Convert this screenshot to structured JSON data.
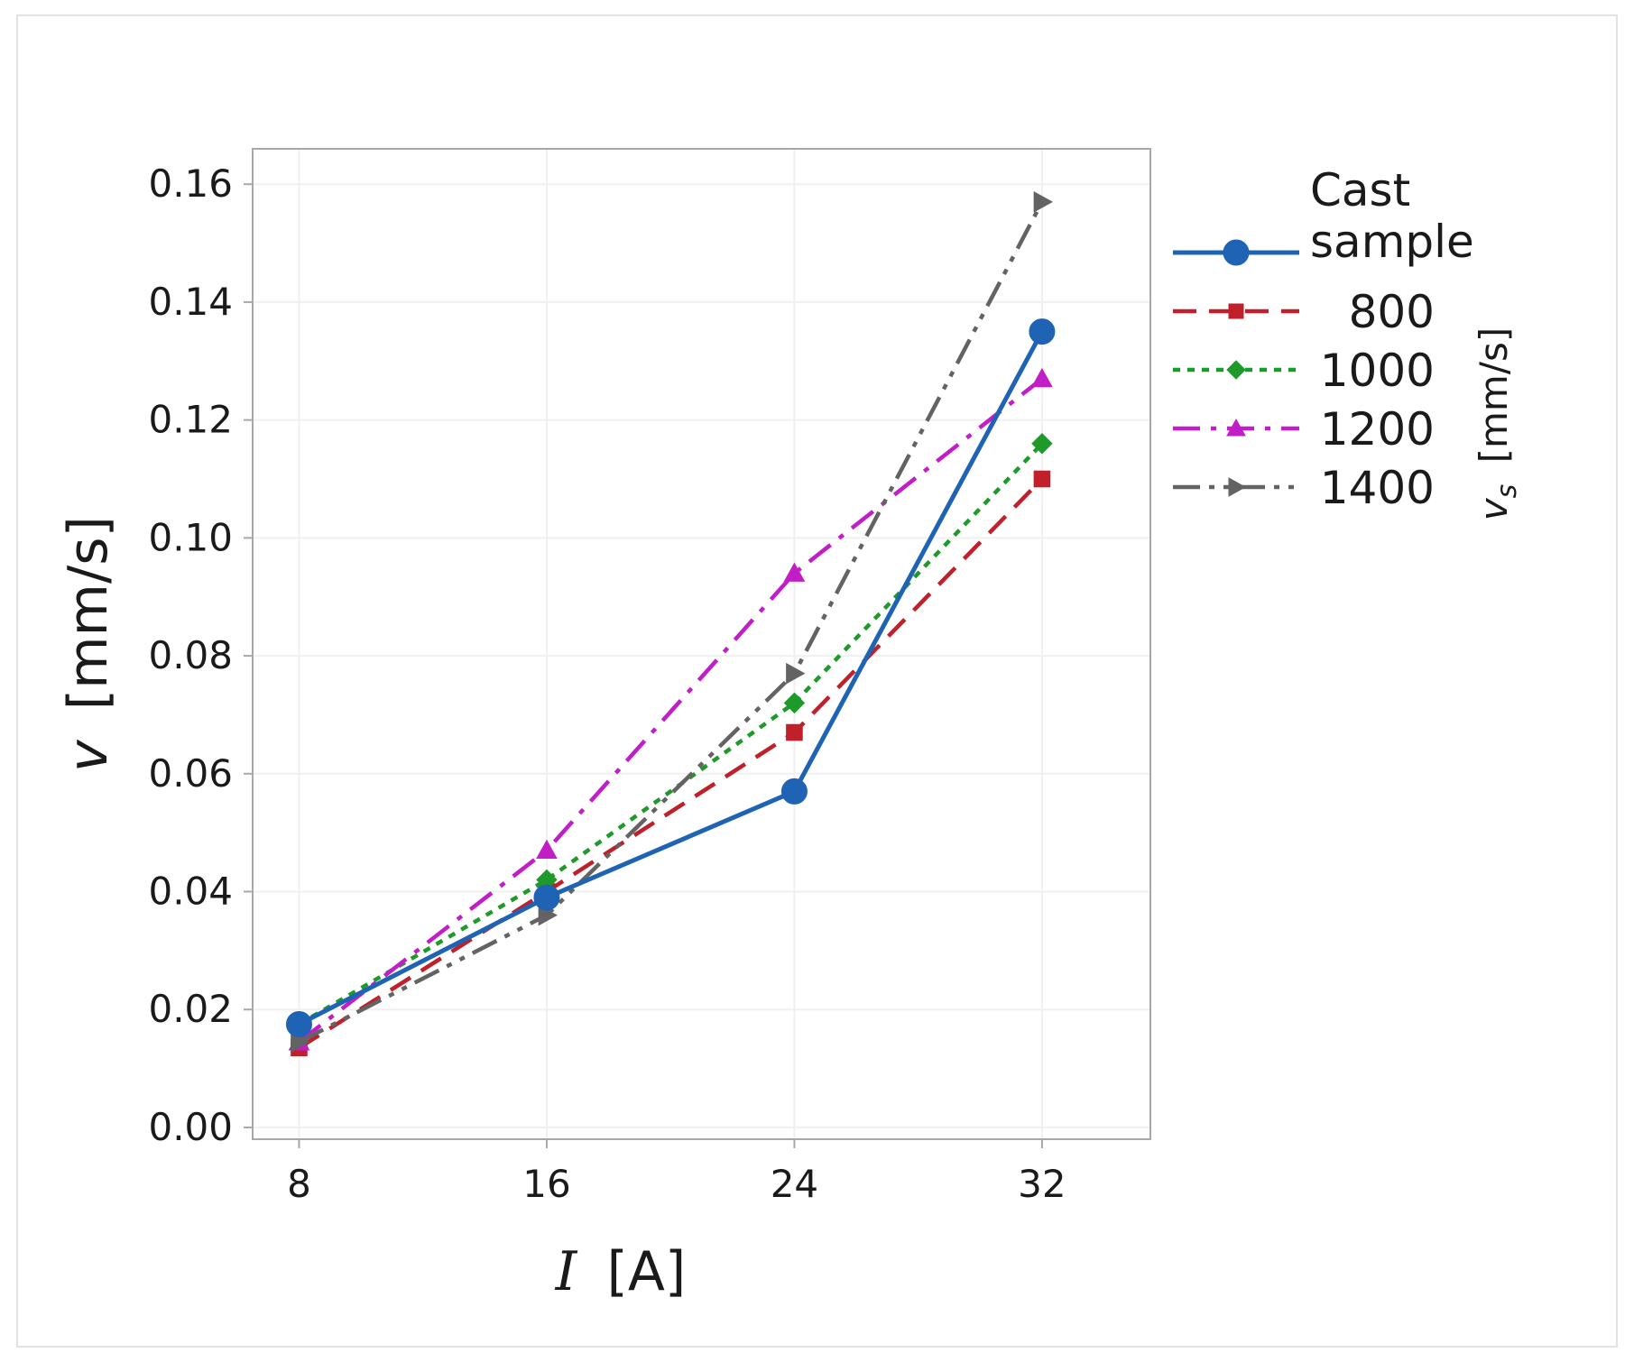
{
  "chart_data": {
    "type": "line",
    "title": "",
    "xlabel_symbol": "I",
    "xlabel_unit": "[A]",
    "ylabel_symbol": "v",
    "ylabel_unit": "[mm/s]",
    "x": [
      8,
      16,
      24,
      32
    ],
    "xlim": [
      6.5,
      35.5
    ],
    "ylim": [
      -0.002,
      0.166
    ],
    "xticks": [
      "8",
      "16",
      "24",
      "32"
    ],
    "yticks": [
      "0.00",
      "0.02",
      "0.04",
      "0.06",
      "0.08",
      "0.10",
      "0.12",
      "0.14",
      "0.16"
    ],
    "grid": true,
    "legend_position": "right",
    "legend_title_line1": "Cast",
    "legend_title_line2": "sample",
    "legend_axis_symbol": "v",
    "legend_axis_subscript": "s",
    "legend_axis_unit": "[mm/s]",
    "series": [
      {
        "name": "Cast sample",
        "label": "",
        "color": "#1f63b5",
        "dash": "solid",
        "marker": "circle",
        "values": [
          0.0175,
          0.039,
          0.057,
          0.135
        ]
      },
      {
        "name": "800",
        "label": "800",
        "color": "#c0202a",
        "dash": "dashed",
        "marker": "square",
        "values": [
          0.0135,
          0.04,
          0.067,
          0.11
        ]
      },
      {
        "name": "1000",
        "label": "1000",
        "color": "#1e9a2a",
        "dash": "dotted",
        "marker": "diamond",
        "values": [
          0.0175,
          0.042,
          0.072,
          0.116
        ]
      },
      {
        "name": "1200",
        "label": "1200",
        "color": "#c21ec8",
        "dash": "dashdot",
        "marker": "triangle-up",
        "values": [
          0.0145,
          0.047,
          0.094,
          0.127
        ]
      },
      {
        "name": "1400",
        "label": "1400",
        "color": "#636363",
        "dash": "dashdotdot",
        "marker": "triangle-right",
        "values": [
          0.0145,
          0.036,
          0.077,
          0.157
        ]
      }
    ]
  }
}
